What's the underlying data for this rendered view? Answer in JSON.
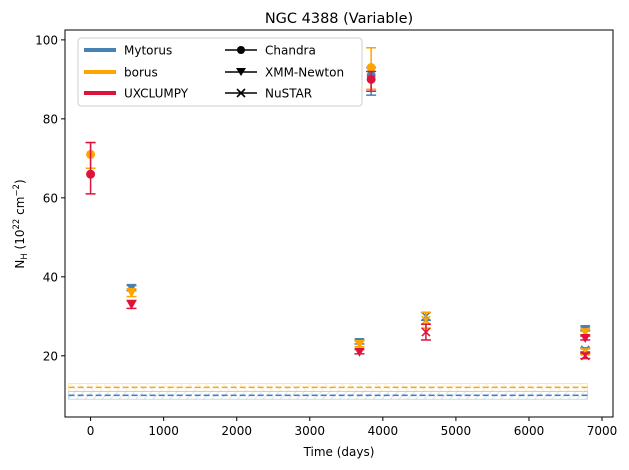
{
  "chart_data": {
    "type": "scatter",
    "title": "NGC 4388 (Variable)",
    "xlabel": "Time (days)",
    "ylabel_main": "N",
    "ylabel_sub": "H",
    "ylabel_rest": " (10",
    "ylabel_exp": "22",
    "ylabel_unit": " cm",
    "ylabel_unit_exp": "−2",
    "ylabel_close": ")",
    "xlim": [
      -350,
      7150
    ],
    "ylim": [
      4.5,
      102.5
    ],
    "xticks": [
      0,
      1000,
      2000,
      3000,
      4000,
      5000,
      6000,
      7000
    ],
    "xtick_labels": [
      "0",
      "1000",
      "2000",
      "3000",
      "4000",
      "5000",
      "6000",
      "7000"
    ],
    "yticks": [
      20,
      40,
      60,
      80,
      100
    ],
    "ytick_labels": [
      "20",
      "40",
      "60",
      "80",
      "100"
    ],
    "colors": {
      "Mytorus": "#4682b4",
      "borus": "#ffa500",
      "UXCLUMPY": "#dc143c",
      "black": "#000000"
    },
    "legend": {
      "placement": "upper-left",
      "models": [
        {
          "label": "Mytorus",
          "color": "#4682b4"
        },
        {
          "label": "borus",
          "color": "#ffa500"
        },
        {
          "label": "UXCLUMPY",
          "color": "#dc143c"
        }
      ],
      "observatories": [
        {
          "label": "Chandra",
          "marker": "circle"
        },
        {
          "label": "XMM-Newton",
          "marker": "triangle-down"
        },
        {
          "label": "NuSTAR",
          "marker": "x"
        }
      ]
    },
    "bands": [
      {
        "model": "Mytorus",
        "center": 10.0,
        "low": 9.0,
        "high": 11.0,
        "x_range": [
          -300,
          6800
        ]
      },
      {
        "model": "borus",
        "center": 12.0,
        "low": 11.0,
        "high": 13.0,
        "x_range": [
          -300,
          6800
        ]
      }
    ],
    "points": [
      {
        "model": "borus",
        "obs": "Chandra",
        "x": 0,
        "y": 71.0,
        "lo": 67.5,
        "hi": 74.0
      },
      {
        "model": "UXCLUMPY",
        "obs": "Chandra",
        "x": 0,
        "y": 66.0,
        "lo": 61.0,
        "hi": 74.0
      },
      {
        "model": "Mytorus",
        "obs": "XMM-Newton",
        "x": 560,
        "y": 37.2,
        "lo": 36.5,
        "hi": 37.8
      },
      {
        "model": "borus",
        "obs": "XMM-Newton",
        "x": 560,
        "y": 36.0,
        "lo": 35.0,
        "hi": 37.0
      },
      {
        "model": "UXCLUMPY",
        "obs": "XMM-Newton",
        "x": 560,
        "y": 33.0,
        "lo": 32.0,
        "hi": 34.0
      },
      {
        "model": "Mytorus",
        "obs": "XMM-Newton",
        "x": 3680,
        "y": 23.5,
        "lo": 23.0,
        "hi": 24.0
      },
      {
        "model": "borus",
        "obs": "XMM-Newton",
        "x": 3680,
        "y": 23.0,
        "lo": 22.3,
        "hi": 23.7
      },
      {
        "model": "UXCLUMPY",
        "obs": "XMM-Newton",
        "x": 3680,
        "y": 21.0,
        "lo": 20.5,
        "hi": 21.6
      },
      {
        "model": "Mytorus",
        "obs": "Chandra",
        "x": 3840,
        "y": 91.0,
        "lo": 86.0,
        "hi": 93.0
      },
      {
        "model": "borus",
        "obs": "Chandra",
        "x": 3840,
        "y": 93.0,
        "lo": 87.5,
        "hi": 98.0
      },
      {
        "model": "UXCLUMPY",
        "obs": "Chandra",
        "x": 3840,
        "y": 90.0,
        "lo": 87.0,
        "hi": 92.0
      },
      {
        "model": "Mytorus",
        "obs": "NuSTAR",
        "x": 4590,
        "y": 30.0,
        "lo": 29.0,
        "hi": 31.0
      },
      {
        "model": "borus",
        "obs": "NuSTAR",
        "x": 4590,
        "y": 29.0,
        "lo": 27.0,
        "hi": 31.0
      },
      {
        "model": "UXCLUMPY",
        "obs": "NuSTAR",
        "x": 4590,
        "y": 26.0,
        "lo": 24.0,
        "hi": 28.0
      },
      {
        "model": "Mytorus",
        "obs": "XMM-Newton",
        "x": 6770,
        "y": 26.8,
        "lo": 26.3,
        "hi": 27.3
      },
      {
        "model": "borus",
        "obs": "XMM-Newton",
        "x": 6770,
        "y": 26.0,
        "lo": 25.3,
        "hi": 26.7
      },
      {
        "model": "UXCLUMPY",
        "obs": "XMM-Newton",
        "x": 6770,
        "y": 24.5,
        "lo": 24.0,
        "hi": 25.0
      },
      {
        "model": "Mytorus",
        "obs": "NuSTAR",
        "x": 6770,
        "y": 21.5,
        "lo": 21.0,
        "hi": 22.0
      },
      {
        "model": "borus",
        "obs": "NuSTAR",
        "x": 6770,
        "y": 21.0,
        "lo": 20.3,
        "hi": 21.7
      },
      {
        "model": "UXCLUMPY",
        "obs": "NuSTAR",
        "x": 6770,
        "y": 20.0,
        "lo": 19.3,
        "hi": 20.7
      }
    ]
  }
}
